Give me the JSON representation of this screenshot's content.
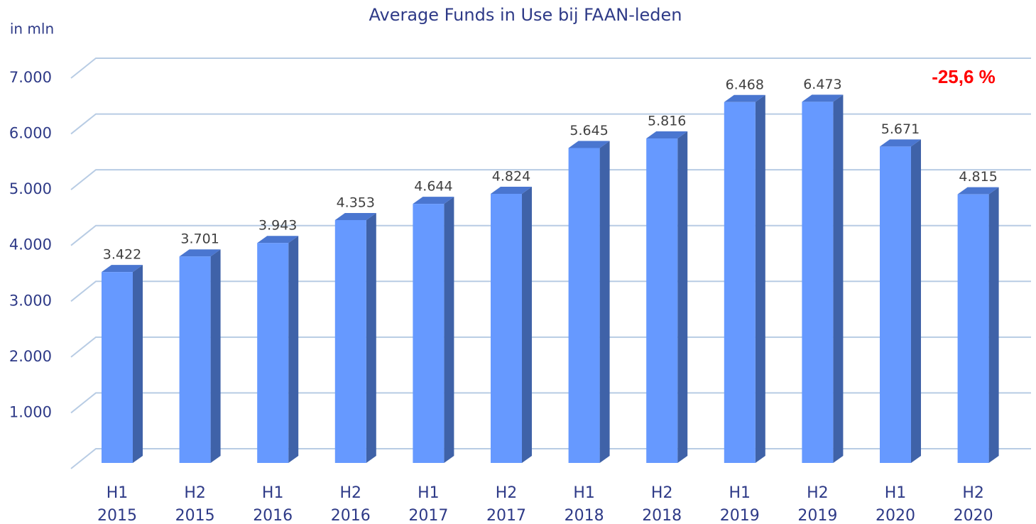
{
  "chart_data": {
    "type": "bar3d",
    "title": "Average Funds in Use bij FAAN-leden",
    "y_label": "in mln",
    "annotation": "-25,6 %",
    "categories": [
      "H1 2015",
      "H2 2015",
      "H1 2016",
      "H2 2016",
      "H1 2017",
      "H2 2017",
      "H1 2018",
      "H2 2018",
      "H1 2019",
      "H2 2019",
      "H1 2020",
      "H2 2020"
    ],
    "values": [
      3422,
      3701,
      3943,
      4353,
      4644,
      4824,
      5645,
      5816,
      6468,
      6473,
      5671,
      4815
    ],
    "value_labels": [
      "3.422",
      "3.701",
      "3.943",
      "4.353",
      "4.644",
      "4.824",
      "5.645",
      "5.816",
      "6.468",
      "6.473",
      "5.671",
      "4.815"
    ],
    "color": "#6699ff",
    "side_color": "#3f62a8",
    "top_color": "#4a76d0",
    "annotation_color": "#ff0000",
    "ylim": [
      0,
      7000
    ],
    "yticks": [
      {
        "value": 1000,
        "label": "1.000"
      },
      {
        "value": 2000,
        "label": "2.000"
      },
      {
        "value": 3000,
        "label": "3.000"
      },
      {
        "value": 4000,
        "label": "4.000"
      },
      {
        "value": 5000,
        "label": "5.000"
      },
      {
        "value": 6000,
        "label": "6.000"
      },
      {
        "value": 7000,
        "label": "7.000"
      }
    ],
    "grid": true
  }
}
